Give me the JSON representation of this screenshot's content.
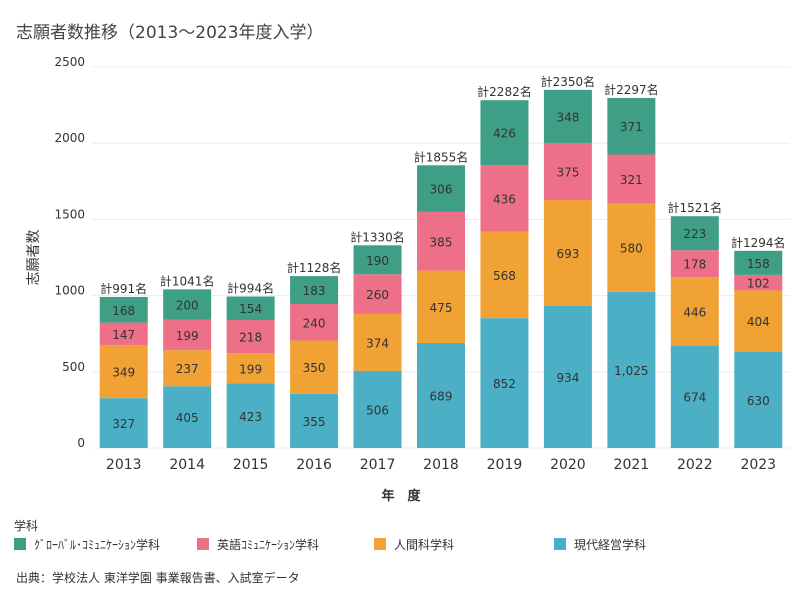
{
  "title": "志願者数推移（2013〜2023年度入学）",
  "source": "出典：学校法人 東洋学園  事業報告書、入試室データ",
  "legend_title": "学科",
  "chart_data": {
    "type": "bar",
    "stacked": true,
    "categories": [
      "2013",
      "2014",
      "2015",
      "2016",
      "2017",
      "2018",
      "2019",
      "2020",
      "2021",
      "2022",
      "2023"
    ],
    "xlabel": "年　度",
    "ylabel": "志願者数",
    "ylim": [
      0,
      2500
    ],
    "yticks": [
      "0",
      "500",
      "1000",
      "1500",
      "2000",
      "2500"
    ],
    "grid": true,
    "legend_position": "bottom",
    "series": [
      {
        "name": "現代経営学科",
        "color": "#4bafc6",
        "values": [
          327,
          405,
          423,
          355,
          506,
          689,
          852,
          934,
          1025,
          674,
          630
        ],
        "labels": [
          "327",
          "405",
          "423",
          "355",
          "506",
          "689",
          "852",
          "934",
          "1,025",
          "674",
          "630"
        ]
      },
      {
        "name": "人間科学科",
        "color": "#f1a234",
        "values": [
          349,
          237,
          199,
          350,
          374,
          475,
          568,
          693,
          580,
          446,
          404
        ],
        "labels": [
          "349",
          "237",
          "199",
          "350",
          "374",
          "475",
          "568",
          "693",
          "580",
          "446",
          "404"
        ]
      },
      {
        "name": "英語ｺﾐｭﾆｹｰｼｮﾝ学科",
        "color": "#ee7088",
        "values": [
          147,
          199,
          218,
          240,
          260,
          385,
          436,
          375,
          321,
          178,
          102
        ],
        "labels": [
          "147",
          "199",
          "218",
          "240",
          "260",
          "385",
          "436",
          "375",
          "321",
          "178",
          "102"
        ]
      },
      {
        "name": "ｸﾞﾛｰﾊﾞﾙ･ｺﾐｭﾆｹｰｼｮﾝ学科",
        "color": "#3f9e86",
        "values": [
          168,
          200,
          154,
          183,
          190,
          306,
          426,
          348,
          371,
          223,
          158
        ],
        "labels": [
          "168",
          "200",
          "154",
          "183",
          "190",
          "306",
          "426",
          "348",
          "371",
          "223",
          "158"
        ]
      }
    ],
    "totals": [
      "計991名",
      "計1041名",
      "計994名",
      "計1128名",
      "計1330名",
      "計1855名",
      "計2282名",
      "計2350名",
      "計2297名",
      "計1521名",
      "計1294名"
    ],
    "legend_order": [
      3,
      2,
      1,
      0
    ]
  }
}
